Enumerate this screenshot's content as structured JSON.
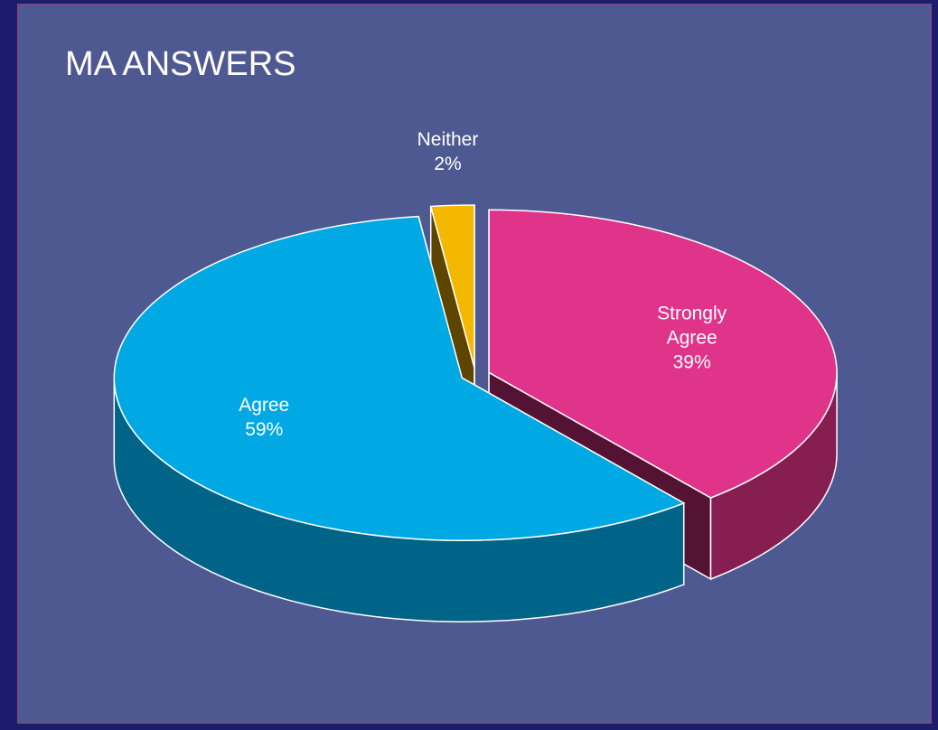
{
  "chart_data": {
    "type": "pie",
    "title": "MA ANSWERS",
    "categories": [
      "Strongly Agree",
      "Agree",
      "Neither"
    ],
    "values": [
      39,
      59,
      2
    ],
    "value_labels": [
      "39%",
      "59%",
      "2%"
    ],
    "colors": [
      "#e0338a",
      "#00a8e4",
      "#f5b800"
    ]
  }
}
